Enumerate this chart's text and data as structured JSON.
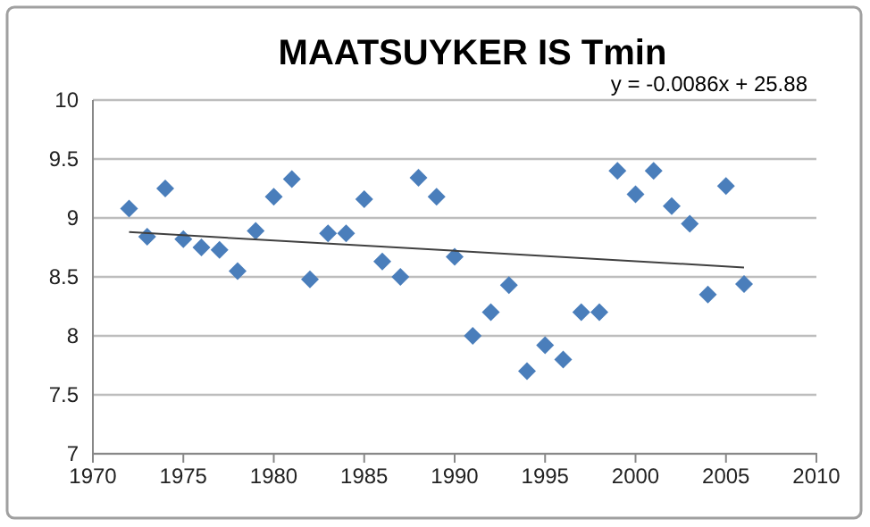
{
  "chart_data": {
    "type": "scatter",
    "title": "MAATSUYKER IS Tmin",
    "annotations": [
      "y = -0.0086x + 25.88"
    ],
    "xlim": [
      1970,
      2010
    ],
    "xticks": [
      1970,
      1975,
      1980,
      1985,
      1990,
      1995,
      2000,
      2005,
      2010
    ],
    "ylim": [
      7,
      10
    ],
    "yticks": [
      7,
      7.5,
      8,
      8.5,
      9,
      9.5,
      10
    ],
    "grid": "y",
    "series": [
      {
        "marker": "diamond",
        "color": "#4a7ebb",
        "x": [
          1972,
          1973,
          1974,
          1975,
          1976,
          1977,
          1978,
          1979,
          1980,
          1981,
          1982,
          1983,
          1984,
          1985,
          1986,
          1987,
          1988,
          1989,
          1990,
          1991,
          1992,
          1993,
          1994,
          1995,
          1996,
          1997,
          1998,
          1999,
          2000,
          2001,
          2002,
          2003,
          2004,
          2005,
          2006
        ],
        "values": [
          9.08,
          8.84,
          9.25,
          8.82,
          8.75,
          8.73,
          8.55,
          8.89,
          9.18,
          9.33,
          8.48,
          8.87,
          8.87,
          9.16,
          8.63,
          8.5,
          9.34,
          9.18,
          8.67,
          8.0,
          8.2,
          8.43,
          7.7,
          7.92,
          7.8,
          8.2,
          8.2,
          9.4,
          9.2,
          9.4,
          9.1,
          8.95,
          8.35,
          9.27,
          8.44
        ]
      },
      {
        "type": "line",
        "color": "#404040",
        "x": [
          1972,
          2006
        ],
        "values": [
          8.88,
          8.58
        ]
      }
    ]
  }
}
